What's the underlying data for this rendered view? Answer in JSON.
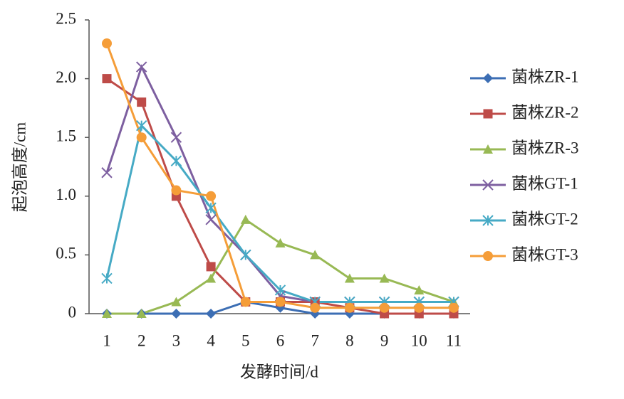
{
  "chart_data": {
    "type": "line",
    "x_label": "发酵时间/d",
    "y_label": "起泡高度/cm",
    "categories": [
      "1",
      "2",
      "3",
      "4",
      "5",
      "6",
      "7",
      "8",
      "9",
      "10",
      "11"
    ],
    "ylim": [
      0,
      2.5
    ],
    "yticks": [
      0,
      {
        "value": 0.5,
        "label": "0.5"
      },
      {
        "value": 1,
        "label": "1.0"
      },
      {
        "value": 1.5,
        "label": "1.5"
      },
      {
        "value": 2,
        "label": "2.0"
      },
      2.5
    ],
    "grid": false,
    "legend": "right",
    "series": [
      {
        "name": "菌株ZR-1",
        "color": "#3c6eb4",
        "marker": "diamond",
        "values": [
          0,
          0,
          0,
          0,
          0.1,
          0.05,
          0,
          0,
          0,
          0,
          0
        ]
      },
      {
        "name": "菌株ZR-2",
        "color": "#be4b48",
        "marker": "square",
        "values": [
          2.0,
          1.8,
          1.0,
          0.4,
          0.1,
          0.1,
          0.1,
          0.05,
          0,
          0,
          0
        ]
      },
      {
        "name": "菌株ZR-3",
        "color": "#98b954",
        "marker": "triangle",
        "values": [
          0,
          0,
          0.1,
          0.3,
          0.8,
          0.6,
          0.5,
          0.3,
          0.3,
          0.2,
          0.1
        ]
      },
      {
        "name": "菌株GT-1",
        "color": "#7d5fa0",
        "marker": "x",
        "values": [
          1.2,
          2.1,
          1.5,
          0.8,
          0.5,
          0.15,
          0.1,
          0.1,
          0.1,
          0.1,
          0.1
        ]
      },
      {
        "name": "菌株GT-2",
        "color": "#46aac5",
        "marker": "star",
        "values": [
          0.3,
          1.6,
          1.3,
          0.9,
          0.5,
          0.2,
          0.1,
          0.1,
          0.1,
          0.1,
          0.1
        ]
      },
      {
        "name": "菌株GT-3",
        "color": "#f59d38",
        "marker": "circle",
        "values": [
          2.3,
          1.5,
          1.05,
          1.0,
          0.1,
          0.1,
          0.05,
          0.05,
          0.05,
          0.05,
          0.05
        ]
      }
    ]
  }
}
